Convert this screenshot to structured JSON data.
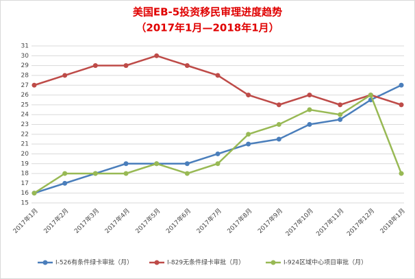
{
  "chart_data": {
    "type": "line",
    "title": "美国EB-5投资移民审理进度趋势",
    "subtitle": "（2017年1月—2018年1月）",
    "categories": [
      "2017年1月",
      "2017年2月",
      "2017年3月",
      "2017年4月",
      "2017年5月",
      "2017年6月",
      "2017年7月",
      "2017年8月",
      "2017年9月",
      "2017年10月",
      "2017年11月",
      "2017年12月",
      "2018年1月"
    ],
    "series": [
      {
        "name": "I-526有条件绿卡审批（月）",
        "color": "#4a7ebb",
        "values": [
          16,
          17,
          18,
          19,
          19,
          19,
          20,
          21,
          21.5,
          23,
          23.5,
          25.5,
          27
        ]
      },
      {
        "name": "I-829无条件绿卡审批（月）",
        "color": "#be4b48",
        "values": [
          27,
          28,
          29,
          29,
          30,
          29,
          28,
          26,
          25,
          26,
          25,
          26,
          25
        ]
      },
      {
        "name": "I-924区域中心项目审批（月）",
        "color": "#98b954",
        "values": [
          16,
          18,
          18,
          18,
          19,
          18,
          19,
          22,
          23,
          24.5,
          24,
          26,
          18
        ]
      }
    ],
    "ylim": [
      15,
      31
    ],
    "yticks": [
      15,
      16,
      17,
      18,
      19,
      20,
      21,
      22,
      23,
      24,
      25,
      26,
      27,
      28,
      29,
      30,
      31
    ],
    "grid": true,
    "legend": "bottom"
  }
}
